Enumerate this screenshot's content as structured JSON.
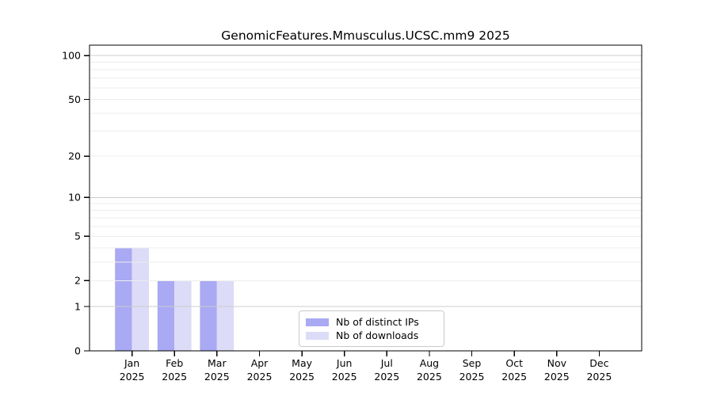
{
  "figure": {
    "title": "GenomicFeatures.Mmusculus.UCSC.mm9 2025"
  },
  "chart_data": {
    "type": "bar",
    "title": "GenomicFeatures.Mmusculus.UCSC.mm9 2025",
    "categories": [
      "Jan",
      "Feb",
      "Mar",
      "Apr",
      "May",
      "Jun",
      "Jul",
      "Aug",
      "Sep",
      "Oct",
      "Nov",
      "Dec"
    ],
    "category_year": "2025",
    "series": [
      {
        "name": "Nb of distinct IPs",
        "color": "#a9a9f4",
        "values": [
          4,
          2,
          2,
          0,
          0,
          0,
          0,
          0,
          0,
          0,
          0,
          0
        ]
      },
      {
        "name": "Nb of downloads",
        "color": "#dcdcf8",
        "values": [
          4,
          2,
          2,
          0,
          0,
          0,
          0,
          0,
          0,
          0,
          0,
          0
        ]
      }
    ],
    "xlabel": "",
    "ylabel": "",
    "yscale": "log1p",
    "ylim": [
      0,
      100
    ],
    "ylim_display_max": 118,
    "yticks": [
      0,
      1,
      2,
      5,
      10,
      20,
      50,
      100
    ],
    "grid": "on",
    "grid_major": [
      1,
      10,
      100
    ],
    "grid_minor": [
      2,
      3,
      4,
      5,
      6,
      7,
      8,
      9,
      20,
      30,
      40,
      50,
      60,
      70,
      80,
      90
    ],
    "grid_over_bars": true,
    "legend_position": "lower center inside",
    "colors": {
      "bar_distinct_ips": "#a9a9f4",
      "bar_downloads": "#dcdcf8",
      "grid_major": "#cccccc",
      "grid_minor": "#ededed",
      "axis": "#000000",
      "legend_border": "#c9c9c9",
      "background": "#ffffff"
    }
  }
}
